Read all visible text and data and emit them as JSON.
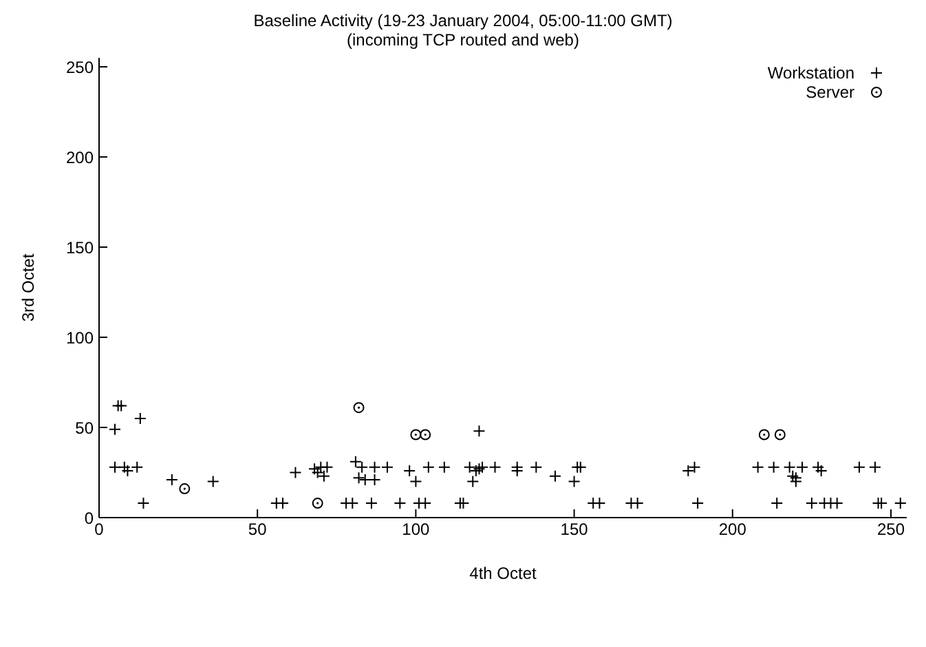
{
  "chart_data": {
    "type": "scatter",
    "title": "Baseline Activity (19-23 January 2004, 05:00-11:00 GMT)",
    "subtitle": "(incoming TCP routed and web)",
    "xlabel": "4th Octet",
    "ylabel": "3rd Octet",
    "xlim": [
      0,
      255
    ],
    "ylim": [
      0,
      255
    ],
    "xticks": [
      0,
      50,
      100,
      150,
      200,
      250
    ],
    "yticks": [
      0,
      50,
      100,
      150,
      200,
      250
    ],
    "grid": false,
    "legend": "top right",
    "series": [
      {
        "name": "Workstation",
        "color": "#000000",
        "marker": "cross",
        "x": [
          5,
          5,
          6,
          7,
          8,
          9,
          12,
          13,
          14,
          23,
          36,
          56,
          58,
          62,
          68,
          69,
          70,
          71,
          72,
          78,
          80,
          81,
          82,
          83,
          84,
          86,
          87,
          87,
          91,
          95,
          98,
          100,
          101,
          103,
          104,
          109,
          114,
          115,
          117,
          118,
          119,
          120,
          120,
          121,
          125,
          132,
          132,
          138,
          144,
          150,
          151,
          152,
          156,
          158,
          168,
          170,
          186,
          188,
          189,
          208,
          213,
          214,
          218,
          219,
          220,
          220,
          222,
          225,
          227,
          228,
          229,
          231,
          233,
          240,
          245,
          246,
          247,
          253
        ],
        "values": [
          28,
          49,
          62,
          62,
          28,
          26,
          28,
          55,
          8,
          21,
          20,
          8,
          8,
          25,
          27,
          25,
          28,
          23,
          28,
          8,
          8,
          31,
          22,
          28,
          21,
          8,
          28,
          21,
          28,
          8,
          26,
          20,
          8,
          8,
          28,
          28,
          8,
          8,
          28,
          20,
          26,
          27,
          48,
          28,
          28,
          28,
          26,
          28,
          23,
          20,
          28,
          28,
          8,
          8,
          8,
          8,
          26,
          28,
          8,
          28,
          28,
          8,
          28,
          23,
          20,
          22,
          28,
          8,
          28,
          26,
          8,
          8,
          8,
          28,
          28,
          8,
          8,
          8
        ]
      },
      {
        "name": "Server",
        "color": "#000000",
        "marker": "circle",
        "x": [
          27,
          69,
          82,
          100,
          103,
          210,
          215
        ],
        "values": [
          16,
          8,
          61,
          46,
          46,
          46,
          46
        ]
      }
    ]
  }
}
